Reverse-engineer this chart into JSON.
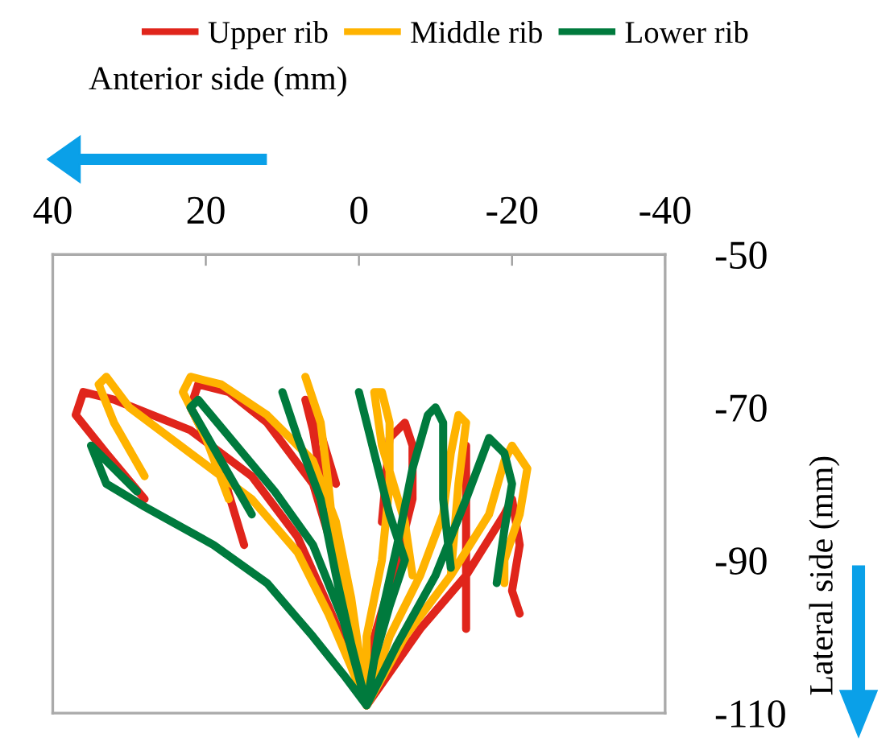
{
  "chart_data": {
    "type": "line",
    "xlabel": "Anterior side (mm)",
    "ylabel": "Lateral side (mm)",
    "xlim": [
      40,
      -40
    ],
    "xticks": [
      40,
      20,
      0,
      -20,
      -40
    ],
    "ylim": [
      -110,
      -50
    ],
    "yticks": [
      -50,
      -70,
      -90,
      -110
    ],
    "grid": false,
    "legend": "top",
    "marker": "none",
    "line_style": "solid",
    "series": [
      {
        "name": "Upper rib",
        "color": "#e0251b",
        "x": [
          28,
          33,
          37,
          36,
          32,
          22,
          14,
          8,
          4,
          1,
          -1,
          null,
          15,
          18,
          22,
          21,
          17,
          12,
          6,
          3,
          1,
          -1,
          null,
          3,
          6,
          7,
          6,
          4,
          2,
          -1,
          null,
          -1,
          -2,
          -5,
          -7,
          -7,
          -6,
          -4,
          -3,
          null,
          -14,
          -14,
          -14,
          null,
          -1,
          -8,
          -14,
          -19,
          -20,
          -21,
          -20,
          -21
        ],
        "values": [
          -82,
          -76,
          -71,
          -68,
          -69,
          -73,
          -79,
          -87,
          -96,
          -103,
          -109,
          null,
          -88,
          -78,
          -70,
          -67,
          -68,
          -72,
          -80,
          -90,
          -100,
          -109,
          null,
          -80,
          -70,
          -69,
          -73,
          -85,
          -96,
          -109,
          null,
          -109,
          -100,
          -90,
          -82,
          -75,
          -72,
          -74,
          -85,
          null,
          -75,
          -88,
          -99,
          null,
          -109,
          -99,
          -92,
          -84,
          -82,
          -88,
          -94,
          -97
        ]
      },
      {
        "name": "Middle rib",
        "color": "#ffb300",
        "x": [
          28,
          32,
          34,
          33,
          30,
          22,
          14,
          8,
          4,
          1,
          -1,
          null,
          17,
          20,
          23,
          22,
          18,
          12,
          6,
          3,
          1,
          -1,
          null,
          7,
          5,
          4,
          3,
          1,
          -1,
          null,
          -1,
          -1,
          -3,
          -4,
          -4,
          -3,
          -2,
          -3,
          -6,
          -7,
          null,
          -1,
          -4,
          -8,
          -11,
          -12,
          -13,
          -14,
          -13,
          -12,
          null,
          -1,
          -6,
          -12,
          -17,
          -19,
          -20,
          -22,
          -21,
          -19,
          -19
        ],
        "values": [
          -79,
          -72,
          -67,
          -66,
          -70,
          -76,
          -82,
          -89,
          -97,
          -104,
          -109,
          null,
          -82,
          -74,
          -68,
          -66,
          -67,
          -71,
          -77,
          -85,
          -95,
          -109,
          null,
          -66,
          -72,
          -80,
          -90,
          -100,
          -109,
          null,
          -109,
          -100,
          -90,
          -80,
          -72,
          -68,
          -68,
          -75,
          -85,
          -92,
          null,
          -109,
          -100,
          -92,
          -84,
          -76,
          -71,
          -72,
          -80,
          -92,
          null,
          -109,
          -100,
          -92,
          -84,
          -77,
          -75,
          -78,
          -84,
          -90,
          -93
        ]
      },
      {
        "name": "Lower rib",
        "color": "#007a3d",
        "x": [
          29,
          33,
          35,
          33,
          28,
          19,
          12,
          6,
          2,
          -1,
          null,
          14,
          18,
          22,
          21,
          16,
          11,
          6,
          2,
          -1,
          null,
          10,
          8,
          5,
          3,
          1,
          -1,
          null,
          0,
          -2,
          -4,
          -6,
          -4,
          -2,
          -1,
          null,
          -1,
          -3,
          -5,
          -7,
          -9,
          -10,
          -11,
          -11,
          -12,
          null,
          -1,
          -5,
          -10,
          -14,
          -17,
          -19,
          -20,
          -19,
          -18
        ],
        "values": [
          -81,
          -77,
          -75,
          -80,
          -83,
          -88,
          -93,
          -100,
          -105,
          -109,
          null,
          -84,
          -77,
          -70,
          -69,
          -75,
          -81,
          -88,
          -98,
          -109,
          null,
          -68,
          -74,
          -82,
          -92,
          -101,
          -109,
          null,
          -68,
          -76,
          -84,
          -90,
          -96,
          -103,
          -109,
          null,
          -109,
          -97,
          -88,
          -78,
          -71,
          -70,
          -72,
          -82,
          -91,
          null,
          -109,
          -101,
          -92,
          -82,
          -74,
          -76,
          -80,
          -86,
          -93
        ]
      }
    ]
  }
}
